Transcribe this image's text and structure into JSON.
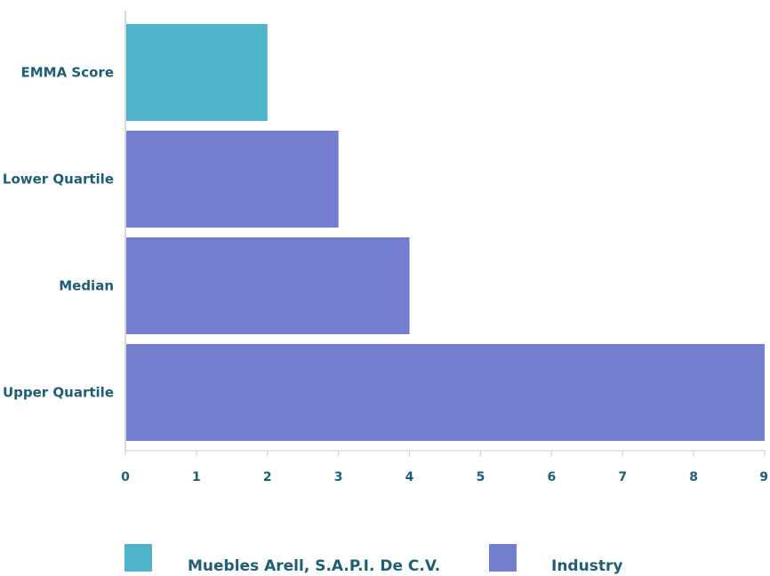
{
  "chart_data": {
    "type": "bar",
    "orientation": "horizontal",
    "categories": [
      "EMMA Score",
      "Lower Quartile",
      "Median",
      "Upper Quartile"
    ],
    "values": [
      2,
      3,
      4,
      9
    ],
    "series_of_category": [
      "Muebles Arell, S.A.P.I. De C.V.",
      "Industry",
      "Industry",
      "Industry"
    ],
    "xlim": [
      0,
      9
    ],
    "xticks": [
      0,
      1,
      2,
      3,
      4,
      5,
      6,
      7,
      8,
      9
    ],
    "grid": false,
    "legend_position": "bottom",
    "legend": [
      {
        "name": "Muebles Arell, S.A.P.I. De C.V.",
        "color": "#4fb3c9"
      },
      {
        "name": "Industry",
        "color": "#727fce"
      }
    ]
  },
  "colors": {
    "company": "#4fb3c9",
    "industry": "#727fce",
    "text": "#1f5f73",
    "axis": "#cccccc"
  }
}
